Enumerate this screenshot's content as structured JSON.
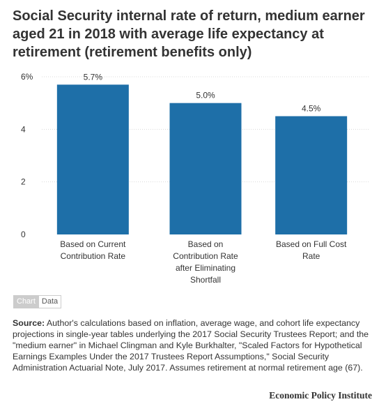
{
  "header": {
    "title": "Social Security internal rate of return, medium earner aged 21 in 2018 with average life expectancy at retirement (retirement benefits only)"
  },
  "toggle": {
    "chart_label": "Chart",
    "data_label": "Data"
  },
  "source": {
    "label": "Source:",
    "text": "Author's calculations based on  inflation, average wage, and cohort life expectancy projections in single-year tables underlying the 2017 Social Security Trustees Report; and the \"medium earner\" in Michael Clingman and Kyle Burkhalter, \"Scaled Factors for Hypothetical Earnings Examples Under the 2017 Trustees  Report Assumptions,\" Social Security Administration Actuarial Note, July 2017. Assumes retirement at normal retirement age (67)."
  },
  "brand": "Economic Policy Institute",
  "colors": {
    "bar": "#1e6fa8",
    "grid": "#d9d9d9"
  },
  "chart_data": {
    "type": "bar",
    "categories": [
      [
        "Based on Current",
        "Contribution Rate"
      ],
      [
        "Based on",
        "Contribution Rate",
        "after Eliminating",
        "Shortfall"
      ],
      [
        "Based on Full Cost",
        "Rate"
      ]
    ],
    "values": [
      5.7,
      5.0,
      4.5
    ],
    "data_labels": [
      "5.7%",
      "5.0%",
      "4.5%"
    ],
    "yticks": [
      "0",
      "2",
      "4",
      "6%"
    ],
    "ytick_values": [
      0,
      2,
      4,
      6
    ],
    "ylim": [
      0,
      6
    ],
    "grid": true
  }
}
